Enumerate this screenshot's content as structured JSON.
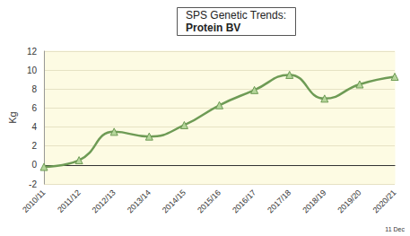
{
  "chart_data": {
    "type": "line",
    "title": "SPS Genetic Trends:",
    "subtitle": "Protein BV",
    "y_label": "Kg",
    "categories": [
      "2010/11",
      "2011/12",
      "2012/13",
      "2013/14",
      "2014/15",
      "2015/16",
      "2016/17",
      "2017/18",
      "2018/19",
      "2019/20",
      "2020/21"
    ],
    "values": [
      -0.2,
      0.5,
      3.5,
      3.0,
      4.2,
      6.3,
      7.9,
      9.5,
      7.0,
      8.5,
      9.3
    ],
    "color": "#6e9b55",
    "marker": "triangle",
    "line_style": "solid",
    "ylim": [
      -2,
      12
    ],
    "yticks": [
      -2,
      0,
      2,
      4,
      6,
      8,
      10,
      12
    ],
    "grid": true,
    "annotations": [
      "11 Dec"
    ]
  }
}
